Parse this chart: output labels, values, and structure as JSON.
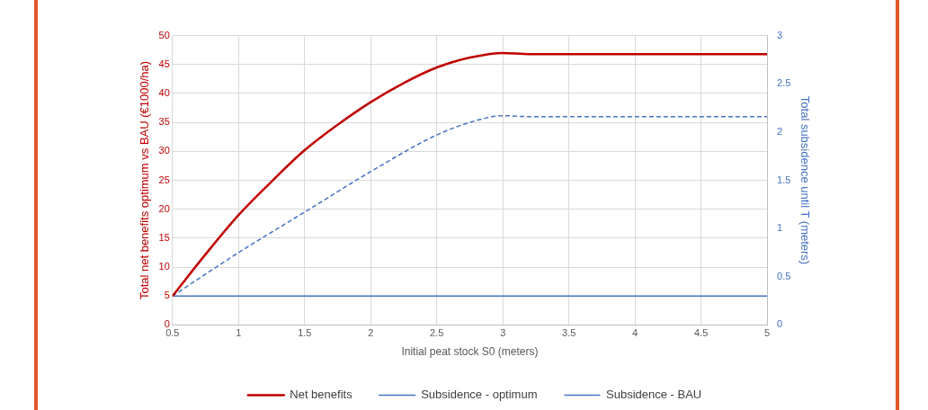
{
  "chart_data": {
    "type": "line",
    "xlabel": "Initial peat stock S0 (meters)",
    "ylabel": "Total net benefits optimum vs BAU (€1000/ha)",
    "y2label": "Total subsidence until T (meters)",
    "xlim": [
      0.5,
      5
    ],
    "xticks": [
      0.5,
      1,
      1.5,
      2,
      2.5,
      3,
      3.5,
      4,
      4.5,
      5
    ],
    "ylim": [
      0,
      50
    ],
    "yticks": [
      0,
      5,
      10,
      15,
      20,
      25,
      30,
      35,
      40,
      45,
      50
    ],
    "y2lim": [
      0,
      3
    ],
    "y2ticks": [
      0,
      0.5,
      1,
      1.5,
      2,
      2.5,
      3
    ],
    "grid": true,
    "legend": "bottom",
    "marker": "none",
    "series": [
      {
        "name": "Net benefits",
        "color": "#c00000",
        "line_style": "solid",
        "x": [
          0.5,
          0.75,
          1,
          1.25,
          1.5,
          1.75,
          2,
          2.25,
          2.5,
          2.75,
          3,
          3.2,
          5
        ],
        "values": [
          5,
          12.2,
          19,
          24.8,
          30.2,
          34.6,
          38.5,
          41.8,
          44.5,
          46.2,
          47,
          46.8,
          46.8
        ]
      },
      {
        "name": "Subsidence - optimum",
        "color": "#4472c4",
        "line_style": "solid",
        "axis": "y2",
        "x": [
          0.5,
          5
        ],
        "values": [
          0.3,
          0.3
        ]
      },
      {
        "name": "Subsidence - BAU",
        "color": "#4472c4",
        "line_style": "dashed",
        "axis": "y2",
        "x": [
          0.5,
          1,
          1.5,
          2,
          2.5,
          2.8,
          3,
          3.2,
          5
        ],
        "values": [
          0.3,
          0.75,
          1.17,
          1.59,
          1.97,
          2.12,
          2.17,
          2.16,
          2.16
        ]
      }
    ]
  }
}
